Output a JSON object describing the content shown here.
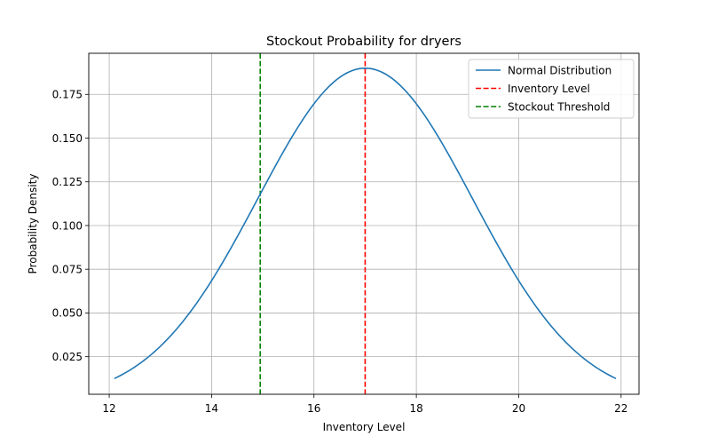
{
  "chart_data": {
    "type": "line",
    "title": "Stockout Probability for dryers",
    "xlabel": "Inventory Level",
    "ylabel": "Probability Density",
    "xlim": [
      11.6,
      22.35
    ],
    "ylim": [
      0.0035,
      0.1985
    ],
    "x_ticks": [
      12,
      14,
      16,
      18,
      20,
      22
    ],
    "x_tick_labels": [
      "12",
      "14",
      "16",
      "18",
      "20",
      "22"
    ],
    "y_ticks": [
      0.025,
      0.05,
      0.075,
      0.1,
      0.125,
      0.15,
      0.175
    ],
    "y_tick_labels": [
      "0.025",
      "0.050",
      "0.075",
      "0.100",
      "0.125",
      "0.150",
      "0.175"
    ],
    "grid": true,
    "legend_position": "top-right",
    "series": [
      {
        "name": "Normal Distribution",
        "color": "#1f77b4",
        "style": "solid",
        "distribution": {
          "mean": 17,
          "std": 2.1,
          "x_start": 12.1,
          "x_end": 21.9
        }
      }
    ],
    "vlines": [
      {
        "name": "Inventory Level",
        "x": 17,
        "color": "#ff0000",
        "style": "dashed"
      },
      {
        "name": "Stockout Threshold",
        "x": 14.95,
        "color": "#008000",
        "style": "dashed"
      }
    ]
  }
}
